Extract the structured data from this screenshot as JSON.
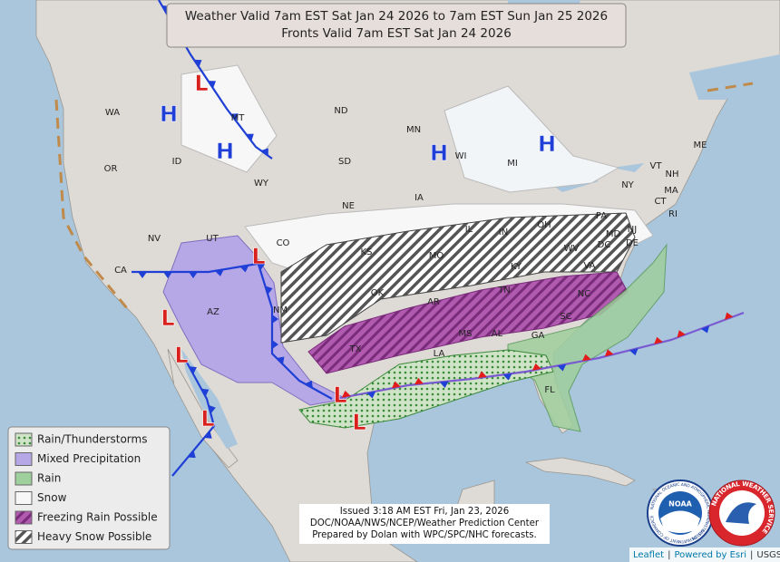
{
  "header": {
    "line1": "Weather Valid 7am EST Sat Jan 24 2026 to 7am EST Sun Jan 25 2026",
    "line2": "Fronts Valid 7am EST Sat Jan 24 2026"
  },
  "states": [
    "WA",
    "OR",
    "ID",
    "MT",
    "WY",
    "NV",
    "UT",
    "CO",
    "AZ",
    "NM",
    "ND",
    "SD",
    "NE",
    "KS",
    "OK",
    "TX",
    "MN",
    "IA",
    "MO",
    "AR",
    "LA",
    "WI",
    "IL",
    "MS",
    "MI",
    "IN",
    "KY",
    "TN",
    "AL",
    "GA",
    "FL",
    "OH",
    "WV",
    "VA",
    "NC",
    "SC",
    "PA",
    "NY",
    "VT",
    "NH",
    "ME",
    "MA",
    "CT",
    "RI",
    "MD",
    "DE",
    "DC",
    "NJ",
    "CA"
  ],
  "pressure_centers": [
    "H",
    "H",
    "H",
    "H",
    "L",
    "L",
    "L",
    "L",
    "L",
    "L",
    "L"
  ],
  "legend": {
    "items": [
      "Rain/Thunderstorms",
      "Mixed Precipitation",
      "Rain",
      "Snow",
      "Freezing Rain Possible",
      "Heavy Snow Possible"
    ]
  },
  "issued": {
    "lines": [
      "Issued  3:18 AM EST Fri, Jan 23, 2026",
      "DOC/NOAA/NWS/NCEP/Weather Prediction Center",
      "Prepared by Dolan with WPC/SPC/NHC forecasts."
    ]
  },
  "logos": {
    "noaa": "NOAA",
    "noaa_ring_top": "NATIONAL OCEANIC AND ATMOSPHERIC ADMINISTRATION",
    "noaa_ring_bottom": "U.S. DEPARTMENT OF COMMERCE",
    "nws_ring": "NATIONAL WEATHER SERVICE"
  },
  "attribution": {
    "items": [
      "Leaflet",
      "Powered by Esri",
      "USGS"
    ],
    "separator": "|"
  }
}
